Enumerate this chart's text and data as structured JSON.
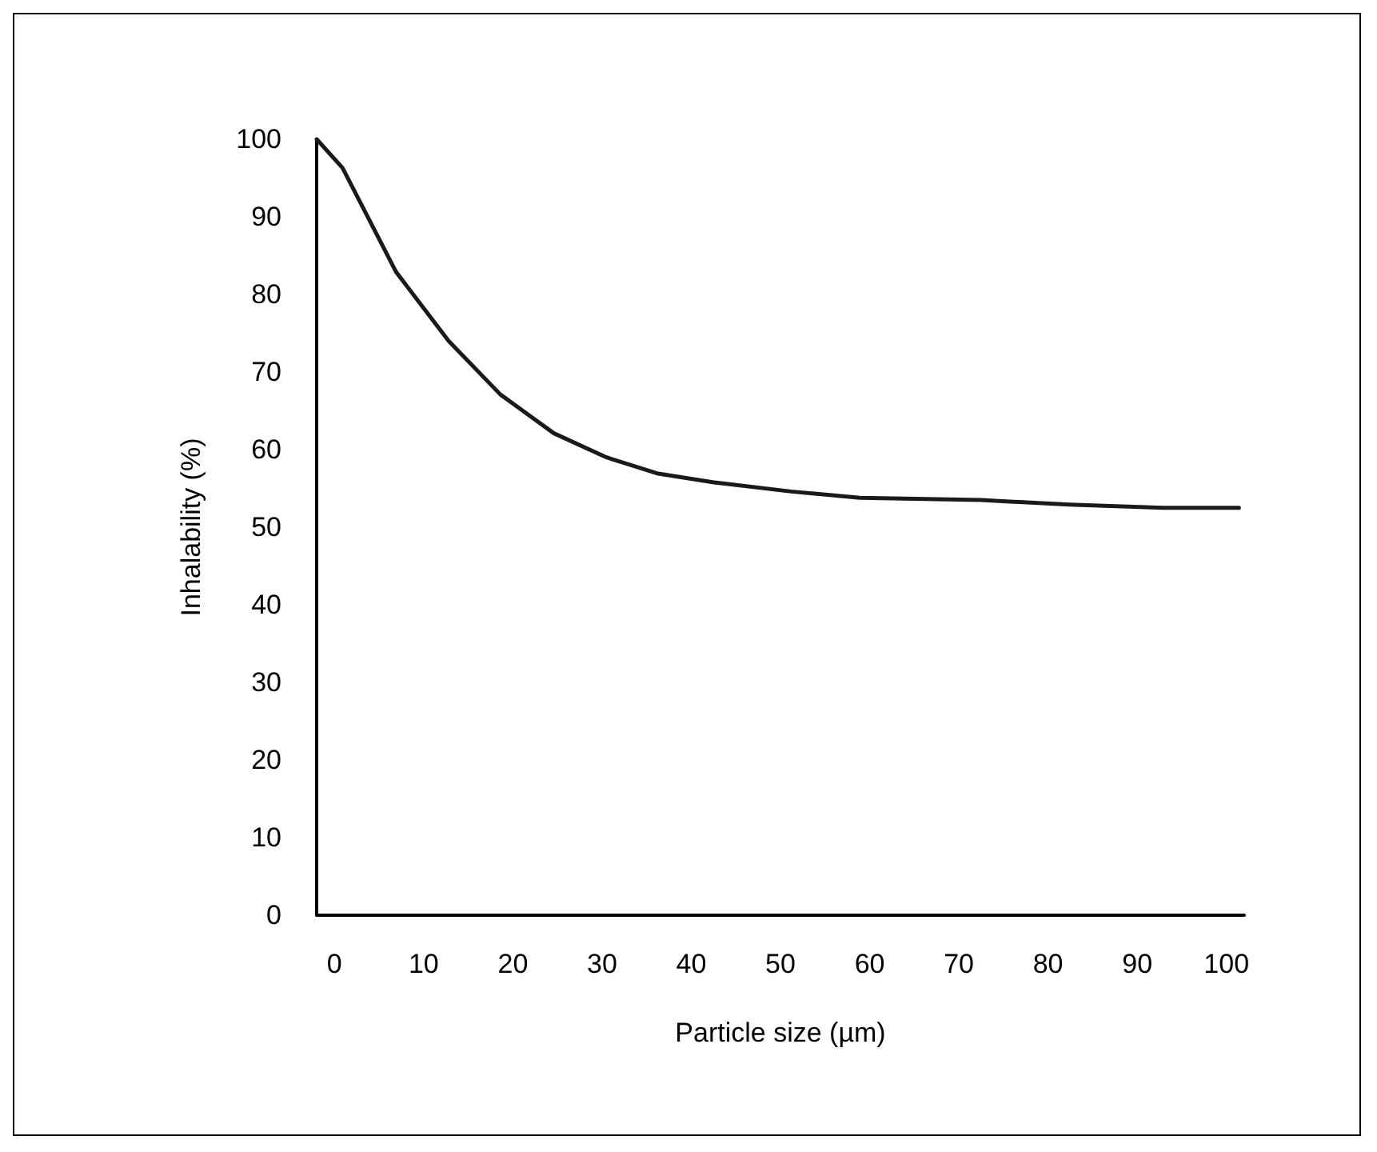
{
  "chart_data": {
    "type": "line",
    "xlabel": "Particle size (µm)",
    "ylabel": "Inhalability (%)",
    "x": [
      -2,
      0.9,
      6.9,
      12.8,
      18.6,
      24.6,
      30.5,
      36.3,
      42.4,
      51.2,
      58.9,
      72.5,
      82.4,
      92.9,
      101.4
    ],
    "series": [
      {
        "color": "#1a1a1a",
        "values": [
          100,
          96.3,
          82.9,
          74.0,
          67.1,
          62.1,
          59.0,
          56.9,
          55.8,
          54.6,
          53.8,
          53.5,
          52.9,
          52.5,
          52.5
        ]
      }
    ],
    "xlim": [
      -2,
      102
    ],
    "ylim": [
      0,
      100
    ],
    "xticks": [
      0,
      10,
      20,
      30,
      40,
      50,
      60,
      70,
      80,
      90,
      100
    ],
    "yticks": [
      0,
      10,
      20,
      30,
      40,
      50,
      60,
      70,
      80,
      90,
      100
    ],
    "grid": false,
    "marker": "none",
    "line_style": "solid"
  }
}
